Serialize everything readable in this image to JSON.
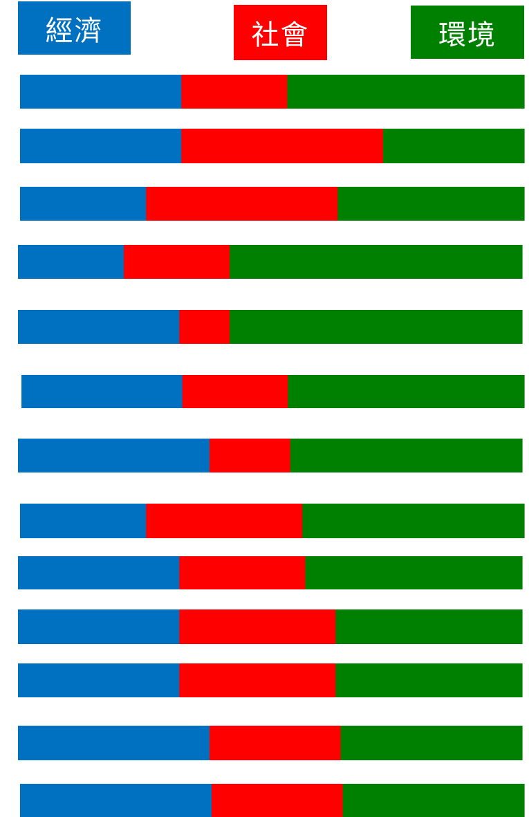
{
  "chart_data": {
    "type": "bar",
    "orientation": "horizontal",
    "stacked": true,
    "normalized": true,
    "legend_position": "top",
    "grid": false,
    "series": [
      {
        "name": "經濟",
        "color": "#0070C0",
        "values": [
          0.32,
          0.32,
          0.25,
          0.21,
          0.32,
          0.32,
          0.38,
          0.25,
          0.32,
          0.32,
          0.32,
          0.38,
          0.38
        ]
      },
      {
        "name": "社會",
        "color": "#FF0000",
        "values": [
          0.21,
          0.4,
          0.38,
          0.21,
          0.1,
          0.21,
          0.16,
          0.31,
          0.25,
          0.31,
          0.31,
          0.26,
          0.26
        ]
      },
      {
        "name": "環境",
        "color": "#008000",
        "values": [
          0.47,
          0.28,
          0.37,
          0.58,
          0.58,
          0.47,
          0.46,
          0.44,
          0.43,
          0.37,
          0.37,
          0.36,
          0.36
        ]
      }
    ]
  },
  "legend": {
    "economy_label": "經濟",
    "society_label": "社會",
    "environment_label": "環境"
  }
}
